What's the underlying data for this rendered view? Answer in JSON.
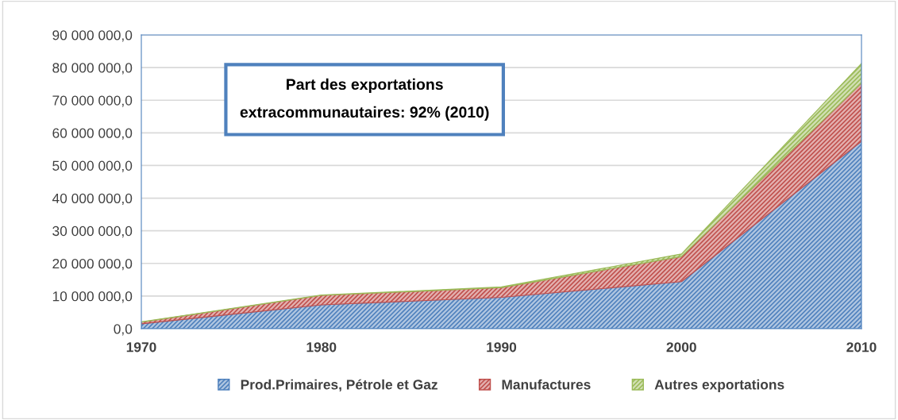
{
  "chart_data": {
    "type": "area",
    "stacked": true,
    "x": [
      1970,
      1980,
      1990,
      2000,
      2010
    ],
    "series": [
      {
        "name": "Prod.Primaires, Pétrole et Gaz",
        "color": "#4f81bd",
        "values": [
          1500000,
          7300000,
          9600000,
          14400000,
          57400000
        ]
      },
      {
        "name": "Manufactures",
        "color": "#c0504d",
        "values": [
          500000,
          2900000,
          3000000,
          7700000,
          17800000
        ]
      },
      {
        "name": "Autres exportations",
        "color": "#9bbb59",
        "values": [
          100000,
          100000,
          200000,
          800000,
          6100000
        ]
      }
    ],
    "xlim": [
      1970,
      2010
    ],
    "xticks": [
      1970,
      1980,
      1990,
      2000,
      2010
    ],
    "ylim": [
      0,
      90000000
    ],
    "yticks": [
      {
        "value": 0,
        "label": "0,0"
      },
      {
        "value": 10000000,
        "label": "10 000 000,0"
      },
      {
        "value": 20000000,
        "label": "20 000 000,0"
      },
      {
        "value": 30000000,
        "label": "30 000 000,0"
      },
      {
        "value": 40000000,
        "label": "40 000 000,0"
      },
      {
        "value": 50000000,
        "label": "50 000 000,0"
      },
      {
        "value": 60000000,
        "label": "60 000 000,0"
      },
      {
        "value": 70000000,
        "label": "70 000 000,0"
      },
      {
        "value": 80000000,
        "label": "80 000 000,0"
      },
      {
        "value": 90000000,
        "label": "90 000 000,0"
      }
    ],
    "grid": "y",
    "legend": "bottom",
    "annotations": [
      "Part des exportations\nextracommunautaires: 92% (2010)"
    ]
  }
}
